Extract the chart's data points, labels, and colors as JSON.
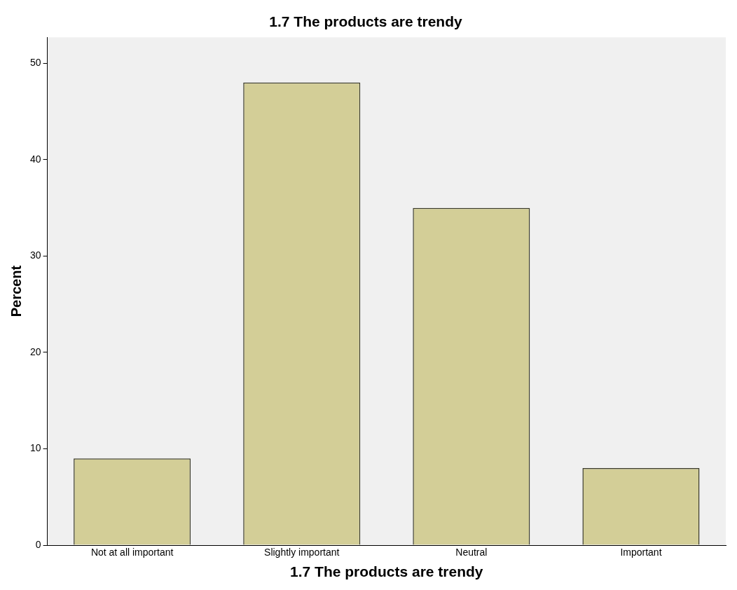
{
  "chart_data": {
    "type": "bar",
    "title": "1.7 The products are trendy",
    "xlabel": "1.7 The products are trendy",
    "ylabel": "Percent",
    "categories": [
      "Not at all important",
      "Slightly important",
      "Neutral",
      "Important"
    ],
    "values": [
      9,
      48,
      35,
      8
    ],
    "color": "#d3ce97",
    "ylim": [
      0,
      52.7
    ],
    "yticks": [
      0,
      10,
      20,
      30,
      40,
      50
    ],
    "grid": false
  }
}
